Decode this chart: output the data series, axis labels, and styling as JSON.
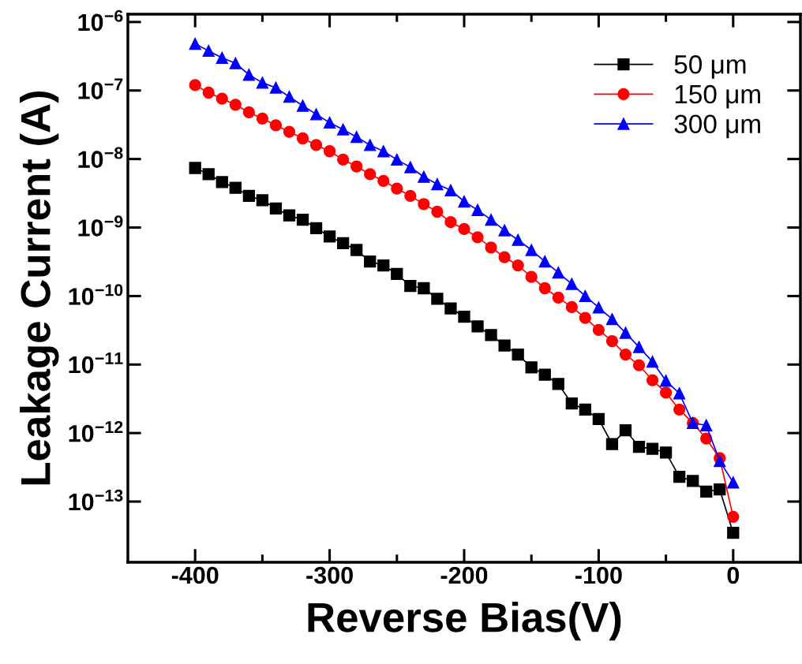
{
  "chart_data": {
    "type": "line",
    "xlabel": "Reverse Bias(V)",
    "ylabel": "Leakage Current (A)",
    "x": [
      -400,
      -390,
      -380,
      -370,
      -360,
      -350,
      -340,
      -330,
      -320,
      -310,
      -300,
      -290,
      -280,
      -270,
      -260,
      -250,
      -240,
      -230,
      -220,
      -210,
      -200,
      -190,
      -180,
      -170,
      -160,
      -150,
      -140,
      -130,
      -120,
      -110,
      -100,
      -90,
      -80,
      -70,
      -60,
      -50,
      -40,
      -30,
      -20,
      -10,
      0
    ],
    "series": [
      {
        "name": "50 μm",
        "color": "#000000",
        "marker": "square",
        "values": [
          7.4e-09,
          6e-09,
          4.6e-09,
          3.8e-09,
          2.9e-09,
          2.5e-09,
          1.9e-09,
          1.5e-09,
          1.3e-09,
          9.8e-10,
          7.4e-10,
          5.9e-10,
          4.7e-10,
          3.2e-10,
          2.8e-10,
          2.1e-10,
          1.4e-10,
          1.3e-10,
          9.1e-11,
          6.6e-11,
          5e-11,
          3.6e-11,
          2.7e-11,
          1.9e-11,
          1.4e-11,
          9.1e-12,
          7.1e-12,
          5.2e-12,
          2.7e-12,
          2.2e-12,
          1.6e-12,
          6.9e-13,
          1.1e-12,
          6.3e-13,
          5.9e-13,
          5.2e-13,
          2.3e-13,
          2e-13,
          1.4e-13,
          1.5e-13,
          3.5e-14
        ]
      },
      {
        "name": "150 μm",
        "color": "#ff0000",
        "marker": "circle",
        "values": [
          1.2e-07,
          9.3e-08,
          7.6e-08,
          6.2e-08,
          4.8e-08,
          3.9e-08,
          3.1e-08,
          2.5e-08,
          2e-08,
          1.6e-08,
          1.3e-08,
          9.8e-09,
          7.8e-09,
          6e-09,
          4.8e-09,
          3.7e-09,
          2.9e-09,
          2.2e-09,
          1.7e-09,
          1.2e-09,
          9.5e-10,
          7.2e-10,
          5.1e-10,
          3.7e-10,
          2.8e-10,
          1.9e-10,
          1.3e-10,
          9.5e-11,
          6.9e-11,
          4.8e-11,
          3.2e-11,
          2.2e-11,
          1.4e-11,
          9.8e-12,
          5.9e-12,
          3.9e-12,
          2.2e-12,
          1.4e-12,
          8.3e-13,
          4.3e-13,
          6e-14
        ]
      },
      {
        "name": "300 μm",
        "color": "#0000ff",
        "marker": "triangle",
        "values": [
          4.8e-07,
          3.8e-07,
          3e-07,
          2.5e-07,
          1.7e-07,
          1.3e-07,
          1.1e-07,
          8.1e-08,
          6e-08,
          4.5e-08,
          3.4e-08,
          2.7e-08,
          2.1e-08,
          1.6e-08,
          1.3e-08,
          9.8e-09,
          7.6e-09,
          5.5e-09,
          4.3e-09,
          3.5e-09,
          2.4e-09,
          1.8e-09,
          1.3e-09,
          9.1e-10,
          6.6e-10,
          4.7e-10,
          3.2e-10,
          2.2e-10,
          1.5e-10,
          1e-10,
          6.8e-11,
          4.6e-11,
          2.9e-11,
          1.8e-11,
          1.1e-11,
          5.8e-12,
          3.8e-12,
          1.4e-12,
          1.3e-12,
          3.9e-13,
          1.9e-13
        ]
      }
    ],
    "log": "y",
    "xlim": [
      -450,
      50
    ],
    "ylim": [
      1.3e-14,
      1.3e-06
    ],
    "xticks": [
      -400,
      {
        "value": -350,
        "label": null
      },
      -300,
      {
        "value": -250,
        "label": null
      },
      -200,
      {
        "value": -150,
        "label": null
      },
      -100,
      {
        "value": -50,
        "label": null
      },
      0
    ],
    "yticks": [
      {
        "value": 1e-13,
        "label": "10$^{−13}$"
      },
      {
        "value": 1e-12,
        "label": "10$^{−12}$"
      },
      {
        "value": 1e-11,
        "label": "10$^{−11}$"
      },
      {
        "value": 1e-10,
        "label": "10$^{−10}$"
      },
      {
        "value": 1e-09,
        "label": "10$^{−9}$"
      },
      {
        "value": 1e-08,
        "label": "10$^{−8}$"
      },
      {
        "value": 1e-07,
        "label": "10$^{−7}$"
      },
      {
        "value": 1e-06,
        "label": "10$^{−6}$"
      }
    ],
    "legend": "top right",
    "grid": false,
    "line_style": "solid"
  }
}
